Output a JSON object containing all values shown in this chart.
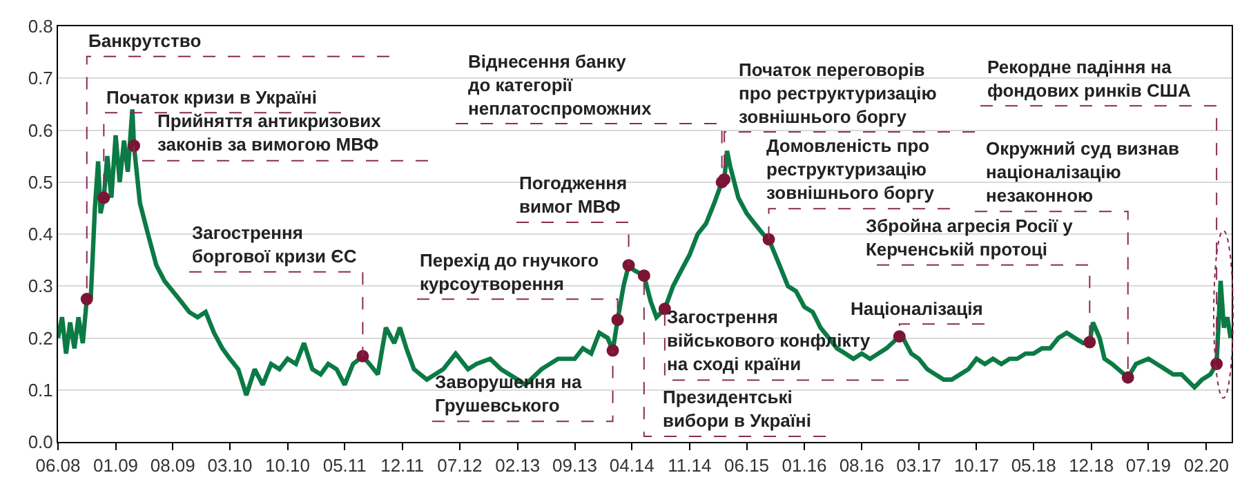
{
  "chart_data": {
    "type": "line",
    "xlim": [
      "2008-06-01",
      "2020-05-05"
    ],
    "ylim": [
      0,
      0.8
    ],
    "yticks": [
      {
        "value": 0,
        "label": "0.0"
      },
      0.1,
      0.2,
      0.3,
      0.4,
      0.5,
      0.6,
      0.7,
      0.8
    ],
    "xticks": [
      {
        "value": "2008-06-01",
        "label": "06.08"
      },
      {
        "value": "2009-01-01",
        "label": "01.09"
      },
      {
        "value": "2009-08-01",
        "label": "08.09"
      },
      {
        "value": "2010-03-01",
        "label": "03.10"
      },
      {
        "value": "2010-10-01",
        "label": "10.10"
      },
      {
        "value": "2011-05-01",
        "label": "05.11"
      },
      {
        "value": "2011-12-01",
        "label": "12.11"
      },
      {
        "value": "2012-07-01",
        "label": "07.12"
      },
      {
        "value": "2013-02-01",
        "label": "02.13"
      },
      {
        "value": "2013-09-01",
        "label": "09.13"
      },
      {
        "value": "2014-04-01",
        "label": "04.14"
      },
      {
        "value": "2014-11-01",
        "label": "11.14"
      },
      {
        "value": "2015-06-01",
        "label": "06.15"
      },
      {
        "value": "2016-01-01",
        "label": "01.16"
      },
      {
        "value": "2016-08-01",
        "label": "08.16"
      },
      {
        "value": "2017-03-01",
        "label": "03.17"
      },
      {
        "value": "2017-10-01",
        "label": "10.17"
      },
      {
        "value": "2018-05-01",
        "label": "05.18"
      },
      {
        "value": "2018-12-01",
        "label": "12.18"
      },
      {
        "value": "2019-07-01",
        "label": "07.19"
      },
      {
        "value": "2020-02-01",
        "label": "02.20"
      }
    ],
    "grid": "y",
    "series": [
      {
        "color": "#0b7a45",
        "line_style": "solid",
        "marker": "none",
        "x": [
          "2008-06-01",
          "2008-06-16",
          "2008-07-01",
          "2008-07-16",
          "2008-08-01",
          "2008-08-16",
          "2008-09-01",
          "2008-09-16",
          "2008-10-01",
          "2008-10-16",
          "2008-10-28",
          "2008-11-06",
          "2008-11-18",
          "2008-12-01",
          "2008-12-16",
          "2009-01-01",
          "2009-01-16",
          "2009-02-01",
          "2009-02-15",
          "2009-03-04",
          "2009-03-10",
          "2009-04-01",
          "2009-05-01",
          "2009-06-01",
          "2009-07-01",
          "2009-08-01",
          "2009-09-01",
          "2009-10-01",
          "2009-11-01",
          "2009-12-01",
          "2010-01-01",
          "2010-02-01",
          "2010-03-01",
          "2010-04-01",
          "2010-05-01",
          "2010-06-01",
          "2010-07-01",
          "2010-08-01",
          "2010-09-01",
          "2010-10-01",
          "2010-11-01",
          "2010-12-01",
          "2011-01-01",
          "2011-02-01",
          "2011-03-01",
          "2011-04-01",
          "2011-05-01",
          "2011-06-01",
          "2011-07-07",
          "2011-08-01",
          "2011-09-01",
          "2011-10-01",
          "2011-11-01",
          "2011-11-22",
          "2011-12-16",
          "2012-01-13",
          "2012-03-01",
          "2012-05-01",
          "2012-06-16",
          "2012-08-01",
          "2012-09-01",
          "2012-10-22",
          "2012-12-01",
          "2013-02-01",
          "2013-03-01",
          "2013-05-01",
          "2013-07-01",
          "2013-09-01",
          "2013-10-01",
          "2013-11-01",
          "2013-12-01",
          "2014-01-01",
          "2014-01-20",
          "2014-02-07",
          "2014-03-01",
          "2014-03-20",
          "2014-04-10",
          "2014-05-16",
          "2014-06-10",
          "2014-07-01",
          "2014-08-01",
          "2014-09-01",
          "2014-10-01",
          "2014-11-01",
          "2014-12-01",
          "2015-01-01",
          "2015-02-01",
          "2015-03-01",
          "2015-03-10",
          "2015-03-20",
          "2015-04-01",
          "2015-05-01",
          "2015-06-01",
          "2015-07-01",
          "2015-08-01",
          "2015-08-22",
          "2015-10-01",
          "2015-11-01",
          "2015-12-01",
          "2016-01-01",
          "2016-02-01",
          "2016-03-01",
          "2016-04-01",
          "2016-05-01",
          "2016-06-01",
          "2016-07-01",
          "2016-08-01",
          "2016-09-01",
          "2016-10-01",
          "2016-11-01",
          "2016-12-19",
          "2017-01-01",
          "2017-02-01",
          "2017-03-01",
          "2017-04-01",
          "2017-05-01",
          "2017-06-01",
          "2017-07-01",
          "2017-08-01",
          "2017-09-01",
          "2017-10-01",
          "2017-11-01",
          "2017-12-01",
          "2018-01-01",
          "2018-02-01",
          "2018-03-01",
          "2018-04-01",
          "2018-05-01",
          "2018-06-01",
          "2018-07-01",
          "2018-08-01",
          "2018-09-01",
          "2018-10-01",
          "2018-11-01",
          "2018-11-25",
          "2018-12-07",
          "2019-01-01",
          "2019-01-19",
          "2019-02-16",
          "2019-04-16",
          "2019-05-16",
          "2019-07-01",
          "2019-08-01",
          "2019-09-01",
          "2019-10-01",
          "2019-11-01",
          "2019-12-19",
          "2020-01-16",
          "2020-02-16",
          "2020-03-10",
          "2020-03-25",
          "2020-04-06",
          "2020-04-19",
          "2020-05-01"
        ],
        "values": [
          0.2,
          0.24,
          0.17,
          0.23,
          0.18,
          0.24,
          0.19,
          0.275,
          0.28,
          0.45,
          0.54,
          0.44,
          0.47,
          0.55,
          0.47,
          0.59,
          0.5,
          0.58,
          0.52,
          0.64,
          0.57,
          0.46,
          0.4,
          0.34,
          0.31,
          0.29,
          0.27,
          0.25,
          0.24,
          0.25,
          0.21,
          0.18,
          0.16,
          0.14,
          0.09,
          0.14,
          0.11,
          0.15,
          0.14,
          0.16,
          0.15,
          0.19,
          0.14,
          0.13,
          0.15,
          0.14,
          0.11,
          0.15,
          0.165,
          0.15,
          0.13,
          0.22,
          0.19,
          0.22,
          0.18,
          0.14,
          0.12,
          0.14,
          0.17,
          0.14,
          0.15,
          0.16,
          0.14,
          0.12,
          0.11,
          0.14,
          0.16,
          0.16,
          0.18,
          0.17,
          0.21,
          0.2,
          0.176,
          0.235,
          0.3,
          0.34,
          0.33,
          0.32,
          0.27,
          0.24,
          0.256,
          0.3,
          0.33,
          0.36,
          0.4,
          0.42,
          0.46,
          0.5,
          0.505,
          0.56,
          0.53,
          0.47,
          0.44,
          0.42,
          0.4,
          0.39,
          0.34,
          0.3,
          0.29,
          0.26,
          0.25,
          0.22,
          0.2,
          0.18,
          0.17,
          0.16,
          0.17,
          0.16,
          0.17,
          0.18,
          0.203,
          0.2,
          0.17,
          0.16,
          0.14,
          0.13,
          0.12,
          0.12,
          0.13,
          0.14,
          0.16,
          0.15,
          0.16,
          0.15,
          0.16,
          0.16,
          0.17,
          0.17,
          0.18,
          0.18,
          0.2,
          0.21,
          0.2,
          0.19,
          0.192,
          0.23,
          0.2,
          0.16,
          0.15,
          0.124,
          0.15,
          0.16,
          0.15,
          0.14,
          0.13,
          0.13,
          0.105,
          0.12,
          0.13,
          0.15,
          0.31,
          0.22,
          0.24,
          0.2
        ]
      },
      {
        "type": "scatter",
        "color": "#7b1535",
        "marker": "circle",
        "x": [
          "2008-09-16",
          "2008-11-18",
          "2009-03-10",
          "2011-07-07",
          "2015-03-01",
          "2015-03-10",
          "2015-08-22",
          "2014-03-20",
          "2014-02-07",
          "2014-01-20",
          "2014-08-01",
          "2014-05-16",
          "2016-12-19",
          "2018-11-25",
          "2019-04-16",
          "2020-03-10"
        ],
        "values": [
          0.275,
          0.47,
          0.57,
          0.165,
          0.5,
          0.505,
          0.39,
          0.34,
          0.235,
          0.176,
          0.256,
          0.32,
          0.203,
          0.192,
          0.124,
          0.15
        ]
      }
    ],
    "annotations": [
      {
        "text": "Банкрутство",
        "x": "2008-09-16",
        "y": 0.275
      },
      {
        "text": "Початок кризи в Україні",
        "x": "2008-11-18",
        "y": 0.47
      },
      {
        "text": "Прийняття антикризових\nзаконів за вимогою МВФ",
        "x": "2009-03-10",
        "y": 0.57
      },
      {
        "text": "Загострення\nборгової кризи ЄС",
        "x": "2011-07-07",
        "y": 0.165
      },
      {
        "text": "Віднесення банку\nдо категорії\nнеплатоспроможних",
        "x": "2015-03-01",
        "y": 0.5
      },
      {
        "text": "Початок переговорів\nпро реструктуризацію\nзовнішнього боргу",
        "x": "2015-03-10",
        "y": 0.505
      },
      {
        "text": "Домовленість про\nреструктуризацію\nзовнішнього боргу",
        "x": "2015-08-22",
        "y": 0.39
      },
      {
        "text": "Погодження\nвимог МВФ",
        "x": "2014-03-20",
        "y": 0.34
      },
      {
        "text": "Перехід до гнучкого\nкурсоутворення",
        "x": "2014-02-07",
        "y": 0.235
      },
      {
        "text": "Заворушення на\nГрушевського",
        "x": "2014-01-20",
        "y": 0.176
      },
      {
        "text": "Загострення\nвійськового конфлікту\nна сході країни",
        "x": "2014-08-01",
        "y": 0.256
      },
      {
        "text": "Президентські\nвибори в Україні",
        "x": "2014-05-16",
        "y": 0.32
      },
      {
        "text": "Націоналізація",
        "x": "2016-12-19",
        "y": 0.203
      },
      {
        "text": "Збройна агресія Росії у\nКерченській протоці",
        "x": "2018-11-25",
        "y": 0.192
      },
      {
        "text": "Окружний суд визнав\nнаціоналізацію\nнезаконною",
        "x": "2019-04-16",
        "y": 0.124
      },
      {
        "text": "Рекордне падіння на\nфондових ринків США",
        "x": "2020-03-10",
        "y": 0.15
      }
    ]
  }
}
